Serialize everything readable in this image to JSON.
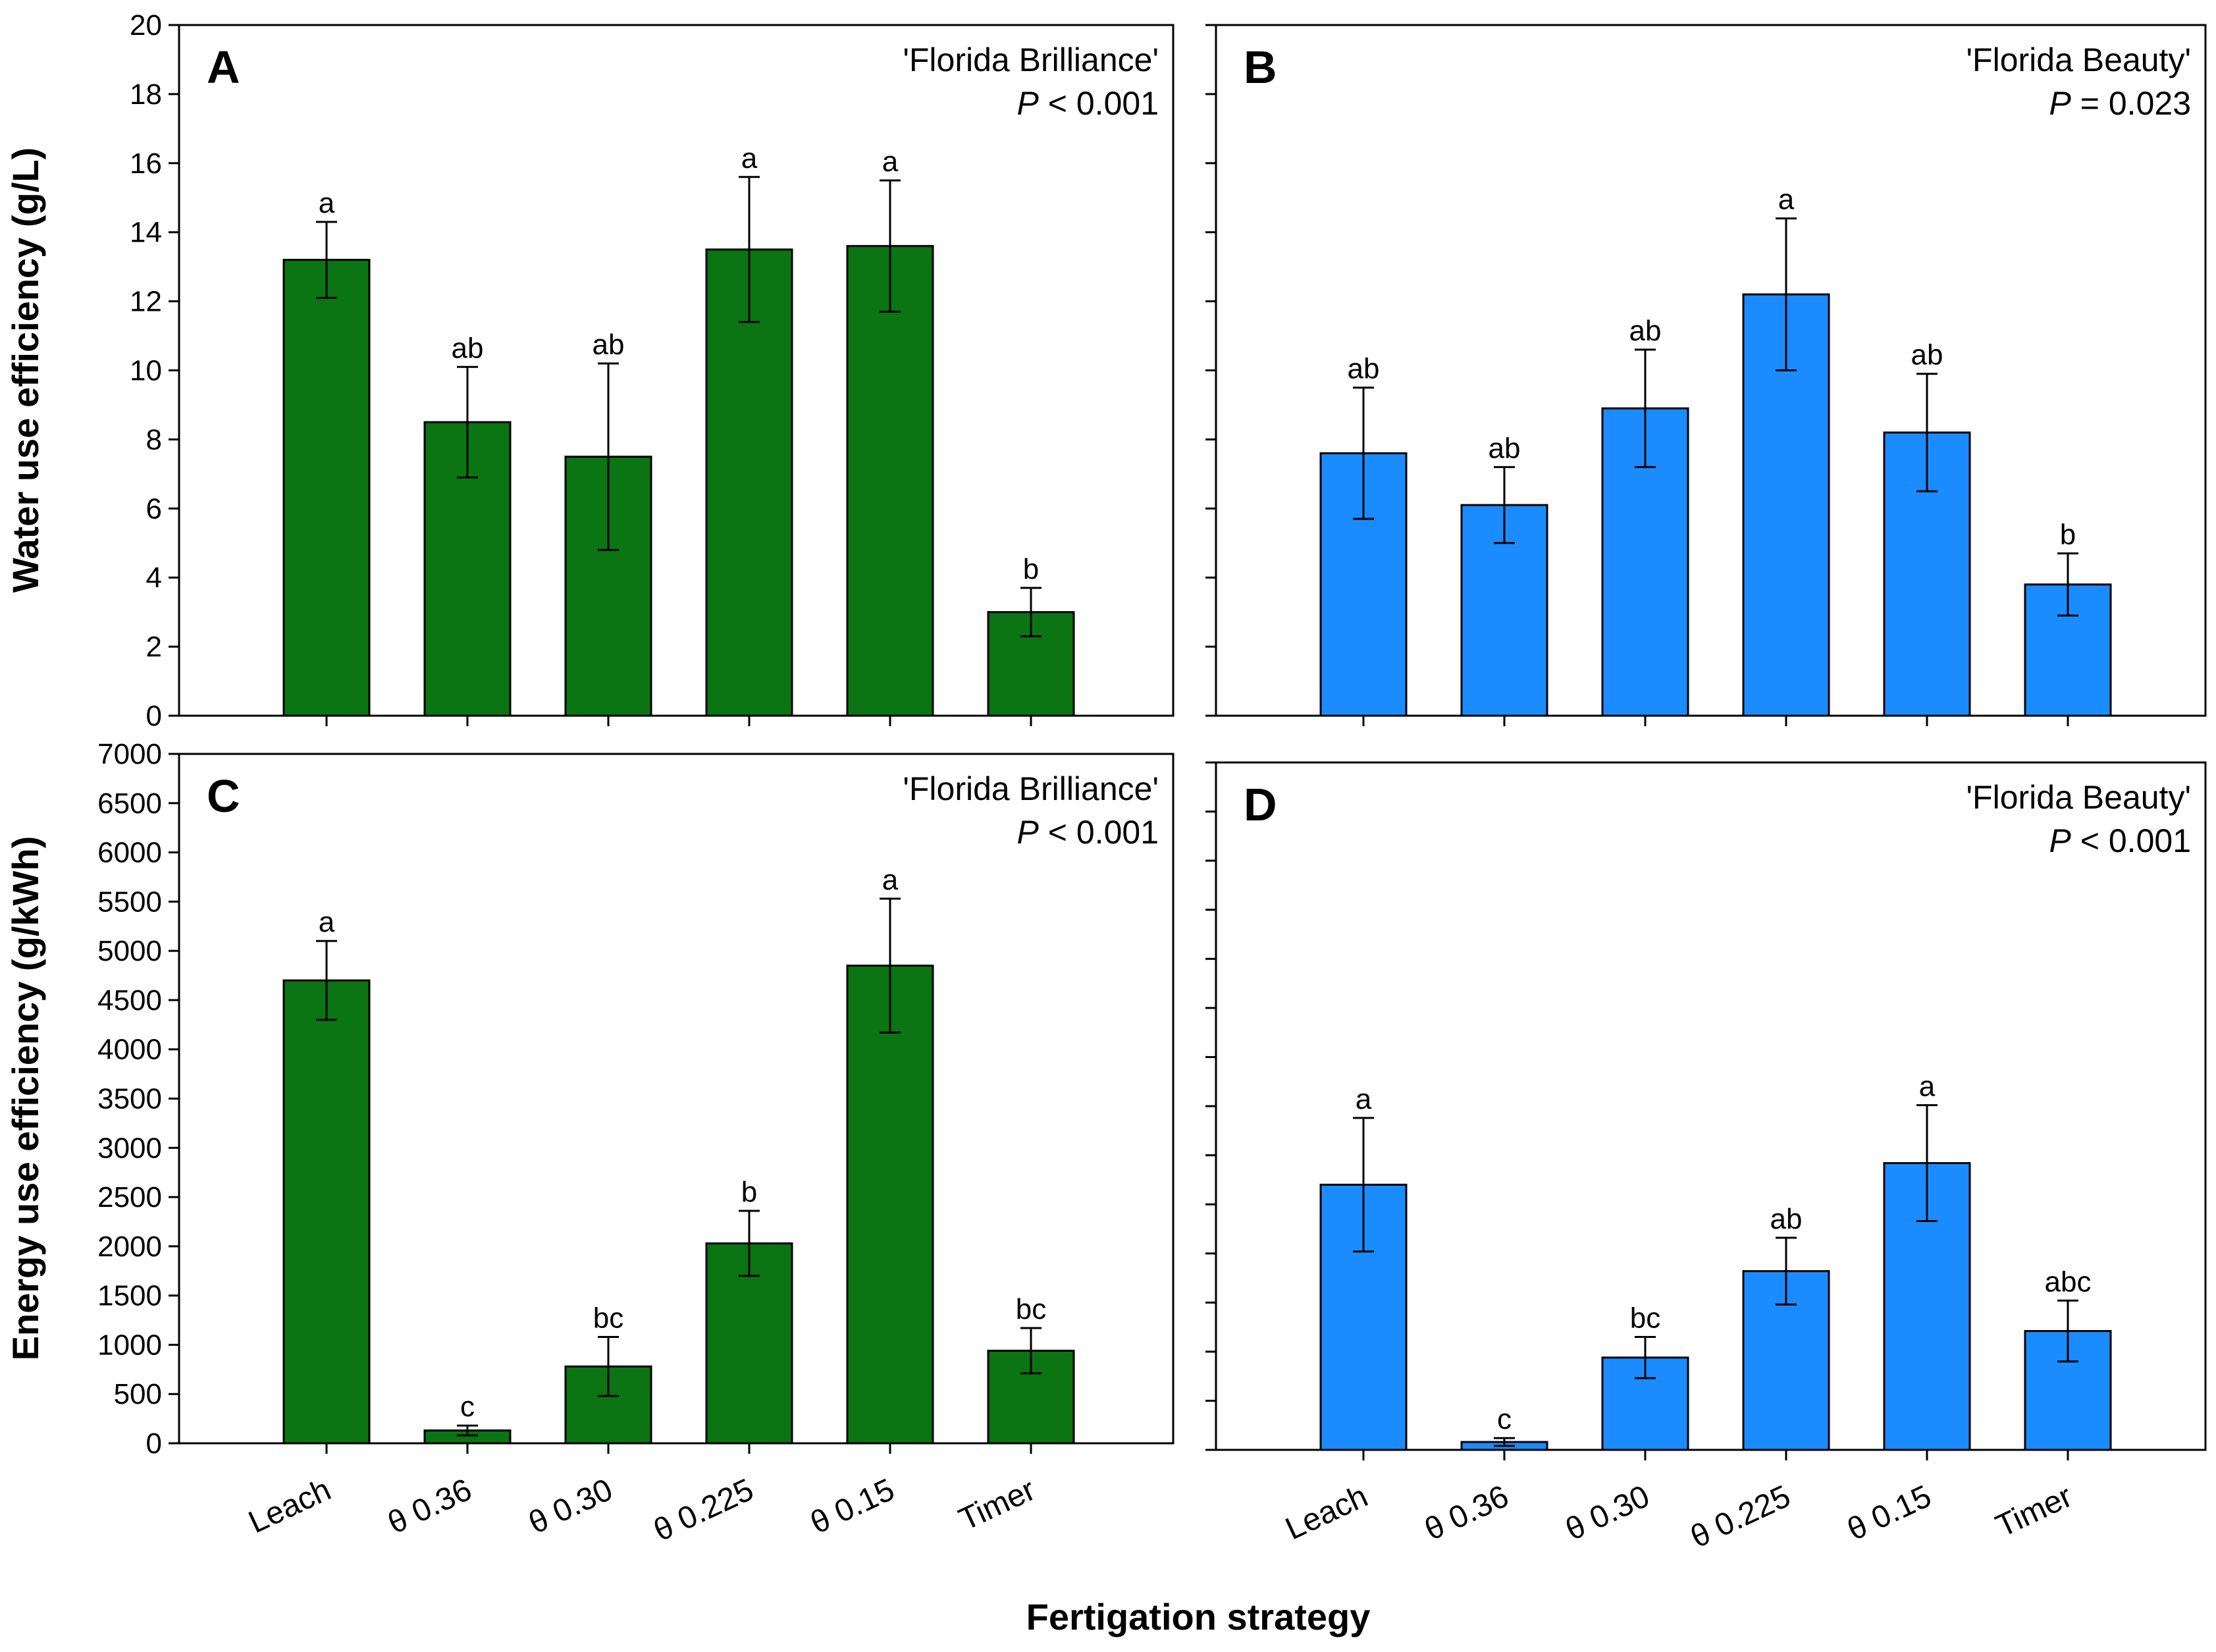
{
  "figure": {
    "x_axis_title": "Fertigation strategy",
    "colors": {
      "green": "#0b7413",
      "blue": "#1a8cff"
    }
  },
  "chart_data": [
    {
      "type": "bar",
      "panel": "A",
      "cultivar": "'Florida Brilliance'",
      "p_prefix": "P",
      "p_value": "< 0.001",
      "ylabel": "Water use efficiency (g/L)",
      "categories": [
        "Leach",
        "θ 0.36",
        "θ 0.30",
        "θ 0.225",
        "θ 0.15",
        "Timer"
      ],
      "values": [
        13.2,
        8.5,
        7.5,
        13.5,
        13.6,
        3.0
      ],
      "errors": [
        1.1,
        1.6,
        2.7,
        2.1,
        1.9,
        0.7
      ],
      "letters": [
        "a",
        "ab",
        "ab",
        "a",
        "a",
        "b"
      ],
      "yticks": [
        0,
        2,
        4,
        6,
        8,
        10,
        12,
        14,
        16,
        18,
        20
      ],
      "ylim": [
        0,
        20
      ],
      "color": "#0b7413"
    },
    {
      "type": "bar",
      "panel": "B",
      "cultivar": "'Florida Beauty'",
      "p_prefix": "P",
      "p_value": "= 0.023",
      "ylabel": "",
      "categories": [
        "Leach",
        "θ 0.36",
        "θ 0.30",
        "θ 0.225",
        "θ 0.15",
        "Timer"
      ],
      "values": [
        7.6,
        6.1,
        8.9,
        12.2,
        8.2,
        3.8
      ],
      "errors": [
        1.9,
        1.1,
        1.7,
        2.2,
        1.7,
        0.9
      ],
      "letters": [
        "ab",
        "ab",
        "ab",
        "a",
        "ab",
        "b"
      ],
      "yticks": [
        0,
        2,
        4,
        6,
        8,
        10,
        12,
        14,
        16,
        18,
        20
      ],
      "ylim": [
        0,
        20
      ],
      "color": "#1a8cff"
    },
    {
      "type": "bar",
      "panel": "C",
      "cultivar": "'Florida Brilliance'",
      "p_prefix": "P",
      "p_value": "< 0.001",
      "ylabel": "Energy use efficiency (g/kWh)",
      "categories": [
        "Leach",
        "θ 0.36",
        "θ 0.30",
        "θ 0.225",
        "θ 0.15",
        "Timer"
      ],
      "values": [
        4700,
        130,
        780,
        2030,
        4850,
        940
      ],
      "errors": [
        400,
        50,
        300,
        330,
        680,
        230
      ],
      "letters": [
        "a",
        "c",
        "bc",
        "b",
        "a",
        "bc"
      ],
      "yticks": [
        0,
        500,
        1000,
        1500,
        2000,
        2500,
        3000,
        3500,
        4000,
        4500,
        5000,
        5500,
        6000,
        6500,
        7000
      ],
      "ylim": [
        0,
        7000
      ],
      "color": "#0b7413"
    },
    {
      "type": "bar",
      "panel": "D",
      "cultivar": "'Florida Beauty'",
      "p_prefix": "P",
      "p_value": "< 0.001",
      "ylabel": "",
      "categories": [
        "Leach",
        "θ 0.36",
        "θ 0.30",
        "θ 0.225",
        "θ 0.15",
        "Timer"
      ],
      "values": [
        2700,
        80,
        940,
        1820,
        2920,
        1210
      ],
      "errors": [
        680,
        40,
        210,
        340,
        590,
        310
      ],
      "letters": [
        "a",
        "c",
        "bc",
        "ab",
        "a",
        "abc"
      ],
      "yticks": [
        0,
        500,
        1000,
        1500,
        2000,
        2500,
        3000,
        3500,
        4000,
        4500,
        5000,
        5500,
        6000,
        6500,
        7000
      ],
      "ylim": [
        0,
        7000
      ],
      "color": "#1a8cff"
    }
  ]
}
